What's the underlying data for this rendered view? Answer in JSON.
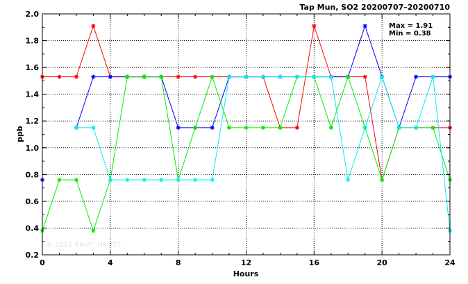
{
  "chart_data": {
    "type": "line",
    "title": "Tap Mun, SO2 20200707–20200710",
    "xlabel": "Hours",
    "ylabel": "ppb",
    "xlim": [
      0,
      24
    ],
    "ylim": [
      0.2,
      2.0
    ],
    "xticks": [
      0,
      4,
      8,
      12,
      16,
      20,
      24
    ],
    "yticks": [
      0.2,
      0.4,
      0.6,
      0.8,
      1.0,
      1.2,
      1.4,
      1.6,
      1.8,
      2.0
    ],
    "ytick_labels": [
      "0.2",
      "0.4",
      "0.6",
      "0.8",
      "1.0",
      "1.2",
      "1.4",
      "1.6",
      "1.8",
      "2.0"
    ],
    "grid": true,
    "annotations": [
      "Max = 1.91",
      "Min = 0.38"
    ],
    "watermark": "© 2026  ENVF, HKUST",
    "x": [
      0,
      1,
      2,
      3,
      4,
      5,
      6,
      7,
      8,
      9,
      10,
      11,
      12,
      13,
      14,
      15,
      16,
      17,
      18,
      19,
      20,
      21,
      22,
      23,
      24
    ],
    "series": [
      {
        "color": "#ff0000",
        "values": [
          1.53,
          1.53,
          1.53,
          1.91,
          1.53,
          1.53,
          1.53,
          1.53,
          1.53,
          1.53,
          1.53,
          1.53,
          1.53,
          1.53,
          1.15,
          1.15,
          1.91,
          1.53,
          1.53,
          1.53,
          0.76,
          1.15,
          1.15,
          1.15,
          1.15
        ]
      },
      {
        "color": "#0000ff",
        "values": [
          0.76,
          null,
          1.15,
          1.53,
          1.53,
          1.53,
          1.53,
          1.53,
          1.15,
          1.15,
          1.15,
          1.53,
          1.53,
          1.53,
          1.53,
          1.53,
          1.53,
          1.53,
          1.53,
          1.91,
          1.53,
          1.15,
          1.53,
          1.53,
          1.53
        ]
      },
      {
        "color": "#00ee00",
        "values": [
          0.38,
          0.76,
          0.76,
          0.38,
          0.76,
          1.53,
          1.53,
          1.53,
          0.76,
          1.15,
          1.53,
          1.15,
          1.15,
          1.15,
          1.15,
          1.53,
          1.53,
          1.15,
          1.53,
          1.15,
          0.76,
          1.15,
          1.15,
          1.15,
          0.76
        ]
      },
      {
        "color": "#00eeee",
        "values": [
          null,
          null,
          1.15,
          1.15,
          0.76,
          0.76,
          0.76,
          0.76,
          0.76,
          0.76,
          0.76,
          1.53,
          1.53,
          1.53,
          1.53,
          1.53,
          1.53,
          1.53,
          0.76,
          1.15,
          1.53,
          1.15,
          1.15,
          1.53,
          0.38
        ]
      }
    ]
  }
}
